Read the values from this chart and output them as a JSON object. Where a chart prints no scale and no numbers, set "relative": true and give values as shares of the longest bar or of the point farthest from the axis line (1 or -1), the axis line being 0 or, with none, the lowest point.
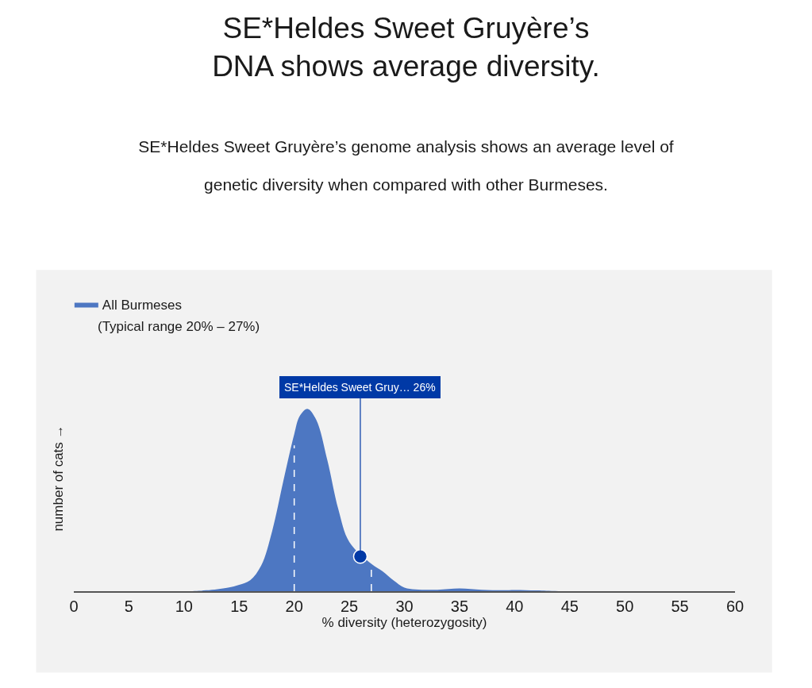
{
  "chart_data": {
    "type": "area",
    "title": "SE*Heldes Sweet Gruyère’s\nDNA shows average diversity.",
    "subtitle": "SE*Heldes Sweet Gruyère’s genome analysis shows an average level of\ngenetic diversity when compared with other Burmeses.",
    "xlabel": "% diversity (heterozygosity)",
    "ylabel": "number of cats →",
    "relative": true,
    "xlim": [
      0,
      60
    ],
    "xticks": [
      0,
      5,
      10,
      15,
      20,
      25,
      30,
      35,
      40,
      45,
      50,
      55,
      60
    ],
    "series": [
      {
        "name": "All Burmeses",
        "color": "#4d77c2",
        "x": [
          0,
          10,
          12,
          14,
          15,
          16,
          17,
          18,
          19,
          20,
          20.5,
          21.2,
          22,
          23,
          24,
          25,
          27,
          28,
          29,
          30,
          31,
          33,
          35,
          37,
          39,
          40,
          42,
          44,
          60
        ],
        "values": [
          0,
          0,
          0.005,
          0.02,
          0.035,
          0.06,
          0.14,
          0.33,
          0.6,
          0.86,
          0.96,
          1.0,
          0.94,
          0.72,
          0.45,
          0.27,
          0.15,
          0.11,
          0.06,
          0.02,
          0.01,
          0.008,
          0.015,
          0.008,
          0.005,
          0.007,
          0.004,
          0,
          0
        ]
      },
      {
        "type": "scatter",
        "color": "#0039a6",
        "x": [
          26
        ],
        "values": [
          0.19
        ],
        "marker": "circle"
      }
    ],
    "ref_lines": [
      {
        "axis": "x",
        "value": 20,
        "color": "#ffffff",
        "line_style": "dashed"
      },
      {
        "axis": "x",
        "value": 27,
        "color": "#ffffff",
        "line_style": "dashed"
      }
    ],
    "annotations": [
      "(Typical range 20% – 27%)",
      {
        "text": "SE*Heldes Sweet Gruy… 26%",
        "x": 26,
        "y": 0.19
      }
    ],
    "legend": "top left",
    "grid": false
  }
}
